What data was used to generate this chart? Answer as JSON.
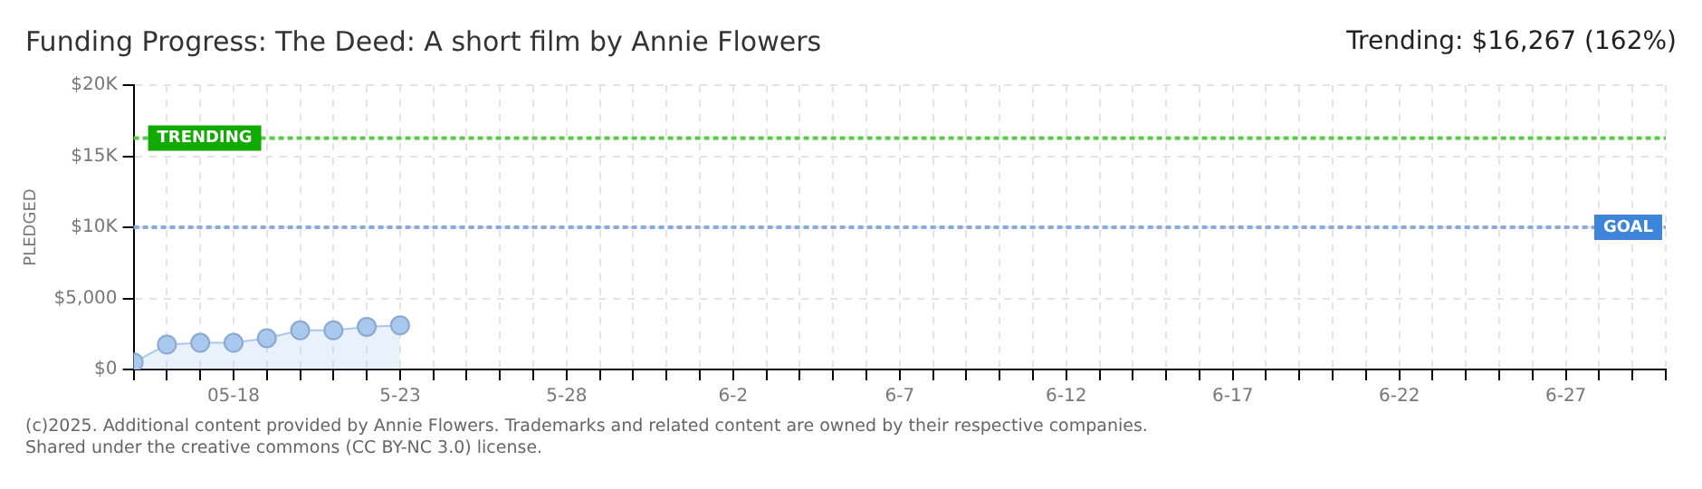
{
  "chart_data": {
    "type": "area",
    "title": "Funding Progress: The Deed: A short film by Annie Flowers",
    "subtitle": "Trending: $16,267 (162%)",
    "ylabel": "PLEDGED",
    "x": [
      "--05-15",
      "--05-16",
      "--05-17",
      "--05-18",
      "--05-19",
      "--05-20",
      "--05-21",
      "--05-22",
      "--05-23"
    ],
    "series": [
      {
        "color": "#a9c8ee",
        "values": [
          500,
          1750,
          1875,
          1875,
          2200,
          2750,
          2750,
          3000,
          3100
        ]
      }
    ],
    "xlim": [
      "--05-15",
      "--06-30"
    ],
    "xticks": [
      {
        "value": "--05-15",
        "label": null
      },
      {
        "value": "--05-16",
        "label": null
      },
      {
        "value": "--05-17",
        "label": null
      },
      {
        "value": "--05-18",
        "label": "05-18"
      },
      {
        "value": "--05-19",
        "label": null
      },
      {
        "value": "--05-20",
        "label": null
      },
      {
        "value": "--05-21",
        "label": null
      },
      {
        "value": "--05-22",
        "label": null
      },
      {
        "value": "--05-23",
        "label": "5-23"
      },
      {
        "value": "--05-24",
        "label": null
      },
      {
        "value": "--05-25",
        "label": null
      },
      {
        "value": "--05-26",
        "label": null
      },
      {
        "value": "--05-27",
        "label": null
      },
      {
        "value": "--05-28",
        "label": "5-28"
      },
      {
        "value": "--05-29",
        "label": null
      },
      {
        "value": "--05-30",
        "label": null
      },
      {
        "value": "--05-31",
        "label": null
      },
      {
        "value": "--06-01",
        "label": null
      },
      {
        "value": "--06-02",
        "label": "6-2"
      },
      {
        "value": "--06-03",
        "label": null
      },
      {
        "value": "--06-04",
        "label": null
      },
      {
        "value": "--06-05",
        "label": null
      },
      {
        "value": "--06-06",
        "label": null
      },
      {
        "value": "--06-07",
        "label": "6-7"
      },
      {
        "value": "--06-08",
        "label": null
      },
      {
        "value": "--06-09",
        "label": null
      },
      {
        "value": "--06-10",
        "label": null
      },
      {
        "value": "--06-11",
        "label": null
      },
      {
        "value": "--06-12",
        "label": "6-12"
      },
      {
        "value": "--06-13",
        "label": null
      },
      {
        "value": "--06-14",
        "label": null
      },
      {
        "value": "--06-15",
        "label": null
      },
      {
        "value": "--06-16",
        "label": null
      },
      {
        "value": "--06-17",
        "label": "6-17"
      },
      {
        "value": "--06-18",
        "label": null
      },
      {
        "value": "--06-19",
        "label": null
      },
      {
        "value": "--06-20",
        "label": null
      },
      {
        "value": "--06-21",
        "label": null
      },
      {
        "value": "--06-22",
        "label": "6-22"
      },
      {
        "value": "--06-23",
        "label": null
      },
      {
        "value": "--06-24",
        "label": null
      },
      {
        "value": "--06-25",
        "label": null
      },
      {
        "value": "--06-26",
        "label": null
      },
      {
        "value": "--06-27",
        "label": "6-27"
      },
      {
        "value": "--06-28",
        "label": null
      },
      {
        "value": "--06-29",
        "label": null
      },
      {
        "value": "--06-30",
        "label": null
      }
    ],
    "ylim": [
      0,
      20000
    ],
    "yticks": [
      {
        "value": 0,
        "label": "$0"
      },
      {
        "value": 5000,
        "label": "$5,000"
      },
      {
        "value": 10000,
        "label": "$10K"
      },
      {
        "value": 15000,
        "label": "$15K"
      },
      {
        "value": 20000,
        "label": "$20K"
      }
    ],
    "ref_lines": [
      {
        "axis": "y",
        "value": 16267,
        "label": "TRENDING",
        "color": "#55cc44",
        "line_style": "dotted"
      },
      {
        "axis": "y",
        "value": 10000,
        "label": "GOAL",
        "color": "#88aadd",
        "line_style": "dotted"
      }
    ],
    "grid": true,
    "legend": false,
    "marker": "circle",
    "line_style": "solid",
    "annotations": [
      "(c)2025. Additional content provided by Annie Flowers. Trademarks and related content are owned by their respective companies.",
      "Shared under the creative commons (CC BY-NC 3.0) license."
    ]
  }
}
